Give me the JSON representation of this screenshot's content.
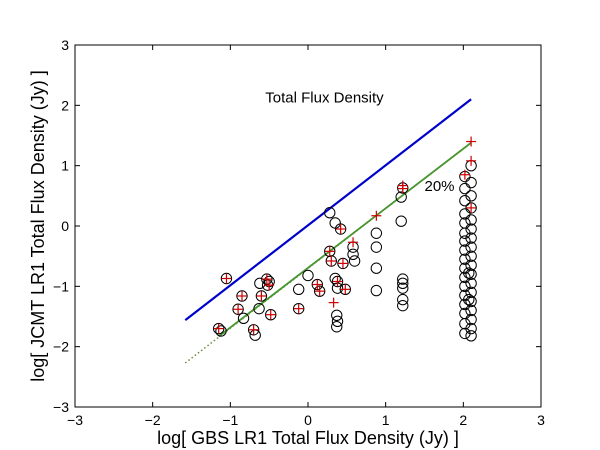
{
  "chart_data": {
    "type": "scatter",
    "title": "",
    "xlabel": "log[ GBS LR1 Total Flux Density (Jy) ]",
    "ylabel": "log[ JCMT LR1 Total Flux Density (Jy) ]",
    "xlim": [
      -3,
      3
    ],
    "ylim": [
      -3,
      3
    ],
    "xticks": [
      "−3",
      "−2",
      "−1",
      "0",
      "1",
      "2",
      "3"
    ],
    "yticks": [
      "−3",
      "−2",
      "−1",
      "0",
      "1",
      "2",
      "3"
    ],
    "annotations": [
      {
        "text": "Total Flux Density",
        "x": -0.55,
        "y": 2.05
      },
      {
        "text": "20%",
        "x": 1.5,
        "y": 0.58
      }
    ],
    "lines": [
      {
        "kind": "blue-solid",
        "color": "#0000cc",
        "x": [
          -1.58,
          2.1
        ],
        "y": [
          -1.56,
          2.1
        ]
      },
      {
        "kind": "green-solid",
        "color": "#3a9a2a",
        "x": [
          -1.15,
          2.1
        ],
        "y": [
          -1.83,
          1.38
        ]
      },
      {
        "kind": "green-dotted",
        "color": "#6a8a3a",
        "x": [
          -1.58,
          2.1
        ],
        "y": [
          -2.27,
          1.38
        ]
      }
    ],
    "series": [
      {
        "marker": "circle",
        "color": "#000000",
        "points": [
          [
            -1.05,
            -0.87
          ],
          [
            -1.15,
            -1.7
          ],
          [
            -1.12,
            -1.74
          ],
          [
            -0.85,
            -1.16
          ],
          [
            -0.9,
            -1.38
          ],
          [
            -0.83,
            -1.53
          ],
          [
            -0.62,
            -0.95
          ],
          [
            -0.6,
            -1.16
          ],
          [
            -0.63,
            -1.37
          ],
          [
            -0.7,
            -1.72
          ],
          [
            -0.68,
            -1.81
          ],
          [
            -0.53,
            -0.88
          ],
          [
            -0.5,
            -0.92
          ],
          [
            -0.52,
            -0.98
          ],
          [
            -0.48,
            -1.47
          ],
          [
            -0.12,
            -1.05
          ],
          [
            -0.12,
            -1.37
          ],
          [
            0.0,
            -0.82
          ],
          [
            0.12,
            -0.97
          ],
          [
            0.15,
            -1.08
          ],
          [
            0.28,
            -0.42
          ],
          [
            0.35,
            -0.87
          ],
          [
            0.38,
            -0.92
          ],
          [
            0.38,
            -1.03
          ],
          [
            0.37,
            -1.48
          ],
          [
            0.38,
            -1.58
          ],
          [
            0.37,
            -1.67
          ],
          [
            0.28,
            0.22
          ],
          [
            0.35,
            0.05
          ],
          [
            0.42,
            -0.05
          ],
          [
            0.3,
            -0.58
          ],
          [
            0.45,
            -0.62
          ],
          [
            0.48,
            -1.05
          ],
          [
            0.58,
            -0.35
          ],
          [
            0.58,
            -0.47
          ],
          [
            0.6,
            -0.58
          ],
          [
            0.88,
            -0.12
          ],
          [
            0.88,
            -0.35
          ],
          [
            0.88,
            -0.7
          ],
          [
            0.88,
            -1.07
          ],
          [
            1.22,
            0.63
          ],
          [
            1.2,
            0.48
          ],
          [
            1.2,
            0.08
          ],
          [
            1.22,
            -0.88
          ],
          [
            1.22,
            -0.95
          ],
          [
            1.22,
            -1.03
          ],
          [
            1.22,
            -1.22
          ],
          [
            1.22,
            -1.32
          ],
          [
            2.02,
            0.82
          ],
          [
            2.02,
            0.62
          ],
          [
            2.02,
            0.42
          ],
          [
            2.02,
            0.2
          ],
          [
            2.02,
            0.05
          ],
          [
            2.02,
            -0.12
          ],
          [
            2.02,
            -0.25
          ],
          [
            2.02,
            -0.4
          ],
          [
            2.02,
            -0.55
          ],
          [
            2.02,
            -0.7
          ],
          [
            2.02,
            -0.85
          ],
          [
            2.02,
            -1.0
          ],
          [
            2.02,
            -1.15
          ],
          [
            2.02,
            -1.3
          ],
          [
            2.02,
            -1.45
          ],
          [
            2.02,
            -1.62
          ],
          [
            2.02,
            -1.78
          ],
          [
            2.1,
            1.0
          ],
          [
            2.1,
            0.72
          ],
          [
            2.1,
            0.5
          ],
          [
            2.1,
            0.3
          ],
          [
            2.1,
            0.1
          ],
          [
            2.1,
            -0.05
          ],
          [
            2.1,
            -0.2
          ],
          [
            2.1,
            -0.35
          ],
          [
            2.1,
            -0.5
          ],
          [
            2.1,
            -0.65
          ],
          [
            2.1,
            -0.8
          ],
          [
            2.1,
            -0.95
          ],
          [
            2.1,
            -1.1
          ],
          [
            2.1,
            -1.25
          ],
          [
            2.1,
            -1.4
          ],
          [
            2.1,
            -1.55
          ],
          [
            2.1,
            -1.7
          ],
          [
            2.1,
            -1.82
          ],
          [
            2.07,
            -0.78
          ],
          [
            2.07,
            -1.22
          ]
        ]
      },
      {
        "marker": "plus",
        "color": "#cc0000",
        "points": [
          [
            -1.05,
            -0.87
          ],
          [
            -1.15,
            -1.7
          ],
          [
            -0.85,
            -1.16
          ],
          [
            -0.9,
            -1.38
          ],
          [
            -0.6,
            -1.16
          ],
          [
            -0.7,
            -1.72
          ],
          [
            -0.53,
            -0.88
          ],
          [
            -0.5,
            -0.98
          ],
          [
            -0.48,
            -1.47
          ],
          [
            -0.12,
            -1.37
          ],
          [
            0.12,
            -0.97
          ],
          [
            0.15,
            -1.08
          ],
          [
            0.28,
            -0.42
          ],
          [
            0.33,
            -1.27
          ],
          [
            0.38,
            -0.92
          ],
          [
            0.42,
            -0.05
          ],
          [
            0.3,
            -0.58
          ],
          [
            0.45,
            -0.62
          ],
          [
            0.48,
            -1.05
          ],
          [
            0.58,
            -0.27
          ],
          [
            0.88,
            0.17
          ],
          [
            1.22,
            0.67
          ],
          [
            1.22,
            0.62
          ],
          [
            2.02,
            0.85
          ],
          [
            2.1,
            1.4
          ],
          [
            2.1,
            1.08
          ],
          [
            2.1,
            0.3
          ]
        ]
      }
    ]
  }
}
